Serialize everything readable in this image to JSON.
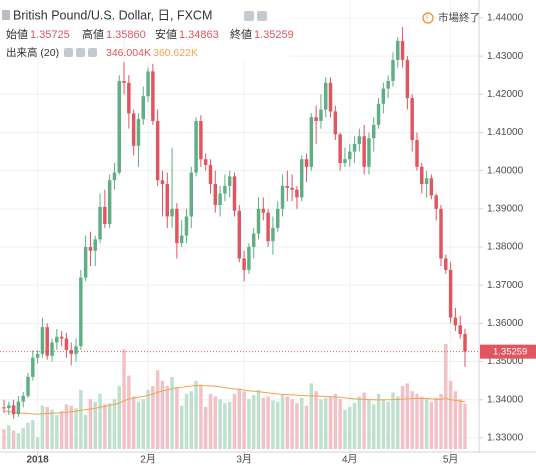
{
  "chart_data": {
    "type": "candlestick",
    "title": "British Pound/U.S. Dollar, 日, FXCM",
    "status": "市場終了",
    "ohlc_legend": [
      {
        "name": "始値",
        "value": {
          "value": 1.35725,
          "label": "1.35725"
        }
      },
      {
        "name": "高値",
        "value": {
          "value": 1.3586,
          "label": "1.35860"
        }
      },
      {
        "name": "安値",
        "value": {
          "value": 1.34863,
          "label": "1.34863"
        }
      },
      {
        "name": "終値",
        "value": {
          "value": 1.35259,
          "label": "1.35259"
        }
      }
    ],
    "volume_legend": {
      "name": "出来高 (20)",
      "volume": {
        "value": 346004,
        "label": "346.004K"
      },
      "ma": {
        "value": 360622,
        "label": "360.622K"
      }
    },
    "categories": [
      null,
      null,
      null,
      null,
      null,
      null,
      null,
      "2018",
      null,
      null,
      null,
      null,
      null,
      null,
      null,
      null,
      null,
      null,
      null,
      null,
      null,
      null,
      null,
      null,
      null,
      null,
      null,
      null,
      null,
      null,
      "2月",
      null,
      null,
      null,
      null,
      null,
      null,
      null,
      null,
      null,
      null,
      null,
      null,
      null,
      null,
      null,
      null,
      null,
      null,
      null,
      "3月",
      null,
      null,
      null,
      null,
      null,
      null,
      null,
      null,
      null,
      null,
      null,
      null,
      null,
      null,
      null,
      null,
      null,
      null,
      null,
      null,
      null,
      "4月",
      null,
      null,
      null,
      null,
      null,
      null,
      null,
      null,
      null,
      null,
      null,
      null,
      null,
      null,
      null,
      null,
      null,
      null,
      null,
      null,
      "5月",
      null,
      null,
      null
    ],
    "open": [
      1.338,
      1.3378,
      1.3385,
      1.3362,
      1.3395,
      1.341,
      1.346,
      1.351,
      1.352,
      1.359,
      1.3515,
      1.355,
      1.3565,
      1.356,
      1.353,
      1.352,
      1.354,
      1.372,
      1.38,
      1.379,
      1.382,
      1.3905,
      1.386,
      1.3975,
      1.3995,
      1.4235,
      1.423,
      1.415,
      1.4065,
      1.4135,
      1.4195,
      1.426,
      1.413,
      1.3975,
      1.3965,
      1.388,
      1.39,
      1.381,
      1.383,
      1.388,
      1.3995,
      1.413,
      1.403,
      1.4015,
      1.3965,
      1.391,
      1.394,
      1.396,
      1.3985,
      1.3895,
      1.377,
      1.374,
      1.38,
      1.3835,
      1.39,
      1.389,
      1.3815,
      1.385,
      1.39,
      1.396,
      1.3955,
      1.395,
      1.393,
      1.403,
      1.401,
      1.414,
      1.413,
      1.416,
      1.423,
      1.4155,
      1.4095,
      1.402,
      1.403,
      1.405,
      1.407,
      1.409,
      1.401,
      1.4085,
      1.412,
      1.4175,
      1.4215,
      1.4235,
      1.429,
      1.434,
      1.429,
      1.419,
      1.408,
      1.401,
      1.3965,
      1.398,
      1.3935,
      1.39,
      1.377,
      1.374,
      1.3615,
      1.3595,
      1.35725
    ],
    "high": [
      1.34,
      1.3395,
      1.34,
      1.341,
      1.342,
      1.347,
      1.353,
      1.353,
      1.3615,
      1.36,
      1.356,
      1.3585,
      1.358,
      1.3575,
      1.355,
      1.356,
      1.374,
      1.383,
      1.384,
      1.383,
      1.394,
      1.395,
      1.399,
      1.402,
      1.425,
      1.4345,
      1.425,
      1.416,
      1.415,
      1.422,
      1.427,
      1.428,
      1.416,
      1.4,
      1.3995,
      1.406,
      1.3915,
      1.387,
      1.39,
      1.401,
      1.414,
      1.4145,
      1.4045,
      1.403,
      1.4,
      1.396,
      1.399,
      1.4,
      1.3995,
      1.391,
      1.379,
      1.381,
      1.385,
      1.393,
      1.393,
      1.39,
      1.388,
      1.392,
      1.399,
      1.4,
      1.399,
      1.396,
      1.404,
      1.4045,
      1.415,
      1.417,
      1.42,
      1.4245,
      1.4245,
      1.417,
      1.41,
      1.406,
      1.407,
      1.409,
      1.411,
      1.412,
      1.41,
      1.414,
      1.419,
      1.423,
      1.425,
      1.431,
      1.435,
      1.4376,
      1.43,
      1.42,
      1.41,
      1.402,
      1.4,
      1.399,
      1.394,
      1.391,
      1.378,
      1.376,
      1.364,
      1.362,
      1.3586
    ],
    "low": [
      1.3365,
      1.336,
      1.335,
      1.3355,
      1.338,
      1.3405,
      1.345,
      1.3495,
      1.351,
      1.3505,
      1.35,
      1.353,
      1.354,
      1.351,
      1.349,
      1.35,
      1.353,
      1.371,
      1.375,
      1.375,
      1.381,
      1.385,
      1.385,
      1.395,
      1.399,
      1.42,
      1.411,
      1.404,
      1.401,
      1.412,
      1.418,
      1.412,
      1.396,
      1.388,
      1.385,
      1.385,
      1.377,
      1.38,
      1.381,
      1.385,
      1.3985,
      1.401,
      1.4,
      1.394,
      1.389,
      1.388,
      1.392,
      1.393,
      1.388,
      1.376,
      1.371,
      1.373,
      1.377,
      1.382,
      1.387,
      1.38,
      1.378,
      1.384,
      1.388,
      1.392,
      1.392,
      1.39,
      1.392,
      1.397,
      1.4,
      1.407,
      1.411,
      1.414,
      1.414,
      1.408,
      1.4,
      1.401,
      1.401,
      1.402,
      1.405,
      1.399,
      1.399,
      1.405,
      1.411,
      1.415,
      1.419,
      1.422,
      1.427,
      1.427,
      1.416,
      1.405,
      1.4,
      1.394,
      1.393,
      1.3925,
      1.387,
      1.375,
      1.373,
      1.36,
      1.358,
      1.356,
      1.34863
    ],
    "close": [
      1.3378,
      1.3385,
      1.3362,
      1.3395,
      1.341,
      1.346,
      1.351,
      1.352,
      1.359,
      1.3515,
      1.355,
      1.3565,
      1.356,
      1.353,
      1.352,
      1.354,
      1.372,
      1.38,
      1.379,
      1.382,
      1.3905,
      1.386,
      1.3975,
      1.3995,
      1.4235,
      1.423,
      1.415,
      1.4065,
      1.4135,
      1.4195,
      1.426,
      1.413,
      1.3975,
      1.3965,
      1.388,
      1.39,
      1.381,
      1.383,
      1.388,
      1.3995,
      1.413,
      1.403,
      1.4015,
      1.3965,
      1.391,
      1.394,
      1.396,
      1.3985,
      1.3895,
      1.377,
      1.374,
      1.38,
      1.3835,
      1.39,
      1.389,
      1.3815,
      1.385,
      1.39,
      1.396,
      1.3955,
      1.395,
      1.393,
      1.403,
      1.401,
      1.414,
      1.413,
      1.416,
      1.423,
      1.4155,
      1.4095,
      1.402,
      1.403,
      1.405,
      1.407,
      1.409,
      1.401,
      1.4085,
      1.412,
      1.4175,
      1.4215,
      1.4235,
      1.429,
      1.434,
      1.429,
      1.419,
      1.408,
      1.401,
      1.3965,
      1.398,
      1.3935,
      1.39,
      1.377,
      1.374,
      1.3615,
      1.3595,
      1.3572,
      1.35259
    ],
    "volume": [
      150000,
      180000,
      140000,
      120000,
      160000,
      200000,
      220000,
      90000,
      330000,
      320000,
      300000,
      260000,
      290000,
      340000,
      330000,
      310000,
      450000,
      260000,
      380000,
      360000,
      420000,
      340000,
      350000,
      380000,
      480000,
      760000,
      560000,
      400000,
      360000,
      380000,
      450000,
      480000,
      600000,
      520000,
      480000,
      550000,
      470000,
      330000,
      420000,
      440000,
      520000,
      480000,
      320000,
      420000,
      400000,
      380000,
      350000,
      360000,
      420000,
      460000,
      440000,
      380000,
      410000,
      450000,
      390000,
      400000,
      370000,
      360000,
      420000,
      400000,
      380000,
      350000,
      390000,
      330000,
      500000,
      440000,
      380000,
      390000,
      400000,
      420000,
      380000,
      300000,
      320000,
      350000,
      400000,
      430000,
      380000,
      340000,
      420000,
      380000,
      360000,
      430000,
      400000,
      480000,
      500000,
      440000,
      420000,
      400000,
      380000,
      360000,
      390000,
      420000,
      800000,
      520000,
      440000,
      380000,
      346004
    ],
    "volume_ma": [
      290000,
      285000,
      280000,
      275000,
      272000,
      270000,
      268000,
      265000,
      268000,
      270000,
      272000,
      274000,
      276000,
      280000,
      284000,
      288000,
      295000,
      300000,
      305000,
      310000,
      318000,
      325000,
      332000,
      340000,
      350000,
      368000,
      380000,
      388000,
      395000,
      400000,
      408000,
      418000,
      432000,
      442000,
      450000,
      460000,
      468000,
      470000,
      475000,
      480000,
      484000,
      486000,
      482000,
      480000,
      478000,
      474000,
      468000,
      462000,
      458000,
      455000,
      450000,
      444000,
      440000,
      436000,
      432000,
      428000,
      424000,
      420000,
      416000,
      414000,
      412000,
      410000,
      408000,
      406000,
      405000,
      404000,
      402000,
      400000,
      398000,
      396000,
      394000,
      390000,
      386000,
      382000,
      380000,
      378000,
      376000,
      375000,
      374000,
      374000,
      375000,
      376000,
      378000,
      380000,
      382000,
      384000,
      386000,
      386000,
      384000,
      382000,
      380000,
      378000,
      385000,
      376000,
      370000,
      365000,
      360622
    ],
    "ylim": [
      1.3263,
      1.4447
    ],
    "yticks": [
      {
        "value": 1.33,
        "label": "1.33000"
      },
      {
        "value": 1.34,
        "label": "1.34000"
      },
      {
        "value": 1.35,
        "label": "1.35000"
      },
      {
        "value": 1.36,
        "label": "1.36000"
      },
      {
        "value": 1.37,
        "label": "1.37000"
      },
      {
        "value": 1.38,
        "label": "1.38000"
      },
      {
        "value": 1.39,
        "label": "1.39000"
      },
      {
        "value": 1.4,
        "label": "1.40000"
      },
      {
        "value": 1.41,
        "label": "1.41000"
      },
      {
        "value": 1.42,
        "label": "1.42000"
      },
      {
        "value": 1.43,
        "label": "1.43000"
      },
      {
        "value": 1.44,
        "label": "1.44000"
      }
    ],
    "grid": true,
    "up_color": "#5fae84",
    "down_color": "#e0555f",
    "volume_up_color": "#bfe0cd",
    "volume_down_color": "#f3c1c5",
    "ma_color": "#f3a14d"
  }
}
